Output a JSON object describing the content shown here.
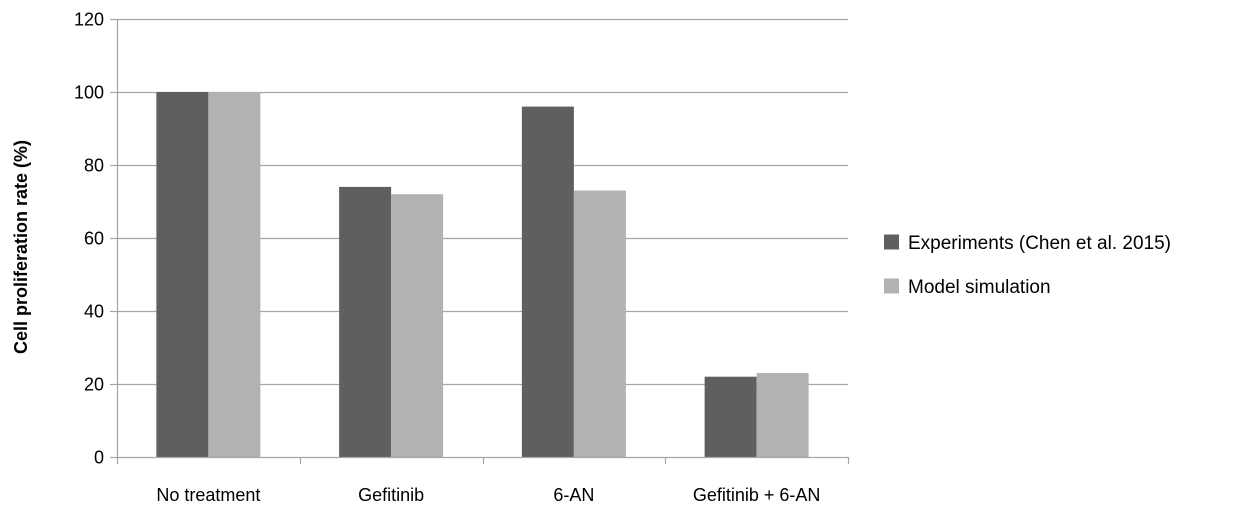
{
  "chart_data": {
    "type": "bar",
    "categories": [
      "No treatment",
      "Gefitinib",
      "6-AN",
      "Gefitinib + 6-AN"
    ],
    "series": [
      {
        "name": "Experiments (Chen et al. 2015)",
        "values": [
          100,
          74,
          96,
          22
        ],
        "color": "#5f5f5f"
      },
      {
        "name": "Model simulation",
        "values": [
          100,
          72,
          73,
          23
        ],
        "color": "#b2b2b2"
      }
    ],
    "title": "",
    "xlabel": "",
    "ylabel": "Cell proliferation  rate (%)",
    "ylim": [
      0,
      120
    ],
    "yticks": [
      0,
      20,
      40,
      60,
      80,
      100,
      120
    ],
    "ytick_labels": [
      "0",
      "20",
      "40",
      "60",
      "80",
      "100",
      "120"
    ],
    "grid": true,
    "legend_position": "right",
    "grid_color": "#a6a6a6",
    "axis_color": "#a6a6a6"
  }
}
